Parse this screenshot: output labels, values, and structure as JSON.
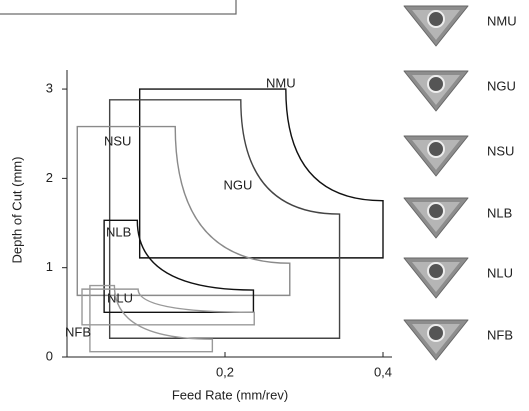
{
  "chart_data": {
    "type": "region",
    "x_label": "Feed Rate (mm/rev)",
    "y_label": "Depth of Cut (mm)",
    "xlim": [
      0,
      0.42
    ],
    "ylim": [
      0,
      3.2
    ],
    "xticks": [
      {
        "value": 0.2,
        "label": "0,2"
      },
      {
        "value": 0.4,
        "label": "0,4"
      }
    ],
    "yticks": [
      0,
      1,
      2,
      3
    ],
    "series": [
      {
        "name": "NMU",
        "color": "#111111",
        "feed": [
          0.092,
          0.277,
          0.4
        ],
        "depth": [
          1.11,
          1.75,
          3.0
        ]
      },
      {
        "name": "NGU",
        "color": "#444444",
        "feed": [
          0.054,
          0.22,
          0.345
        ],
        "depth": [
          0.21,
          1.6,
          2.88
        ]
      },
      {
        "name": "NSU",
        "color": "#8a8a8a",
        "feed": [
          0.013,
          0.137,
          0.282
        ],
        "depth": [
          0.69,
          1.05,
          2.58
        ]
      },
      {
        "name": "NLB",
        "color": "#111111",
        "feed": [
          0.047,
          0.089,
          0.236
        ],
        "depth": [
          0.5,
          0.75,
          1.53
        ]
      },
      {
        "name": "NLU",
        "color": "#999999",
        "feed": [
          0.019,
          0.09,
          0.237
        ],
        "depth": [
          0.36,
          0.5,
          0.76
        ]
      },
      {
        "name": "NFB",
        "color": "#999999",
        "feed": [
          0.029,
          0.06,
          0.184
        ],
        "depth": [
          0.06,
          0.2,
          0.8
        ]
      }
    ]
  }
}
